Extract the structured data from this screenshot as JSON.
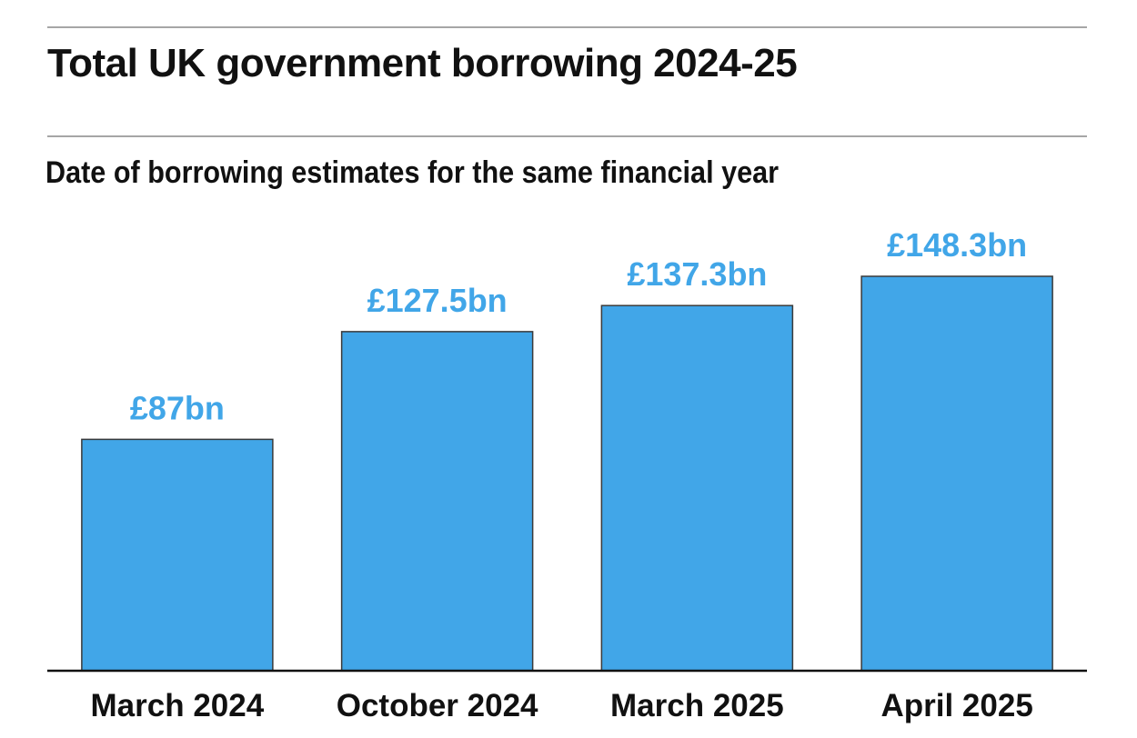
{
  "title": "Total UK government borrowing 2024-25",
  "subtitle": "Date of borrowing estimates for the same financial year",
  "colors": {
    "bar": "#41a6e8",
    "bar_edge": "#3a3a3a",
    "value_label": "#41a6e8",
    "axis": "#111111",
    "rule": "#a6a6a6"
  },
  "chart_data": {
    "type": "bar",
    "categories": [
      "March 2024",
      "October 2024",
      "March 2025",
      "April 2025"
    ],
    "values": [
      87,
      127.5,
      137.3,
      148.3
    ],
    "value_labels": [
      "£87bn",
      "£127.5bn",
      "£137.3bn",
      "£148.3bn"
    ],
    "title": "Total UK government borrowing 2024-25",
    "subtitle": "Date of borrowing estimates for the same financial year",
    "xlabel": "",
    "ylabel": "",
    "unit": "£bn",
    "ylim": [
      0,
      148.3
    ],
    "grid": false,
    "legend": "none"
  }
}
